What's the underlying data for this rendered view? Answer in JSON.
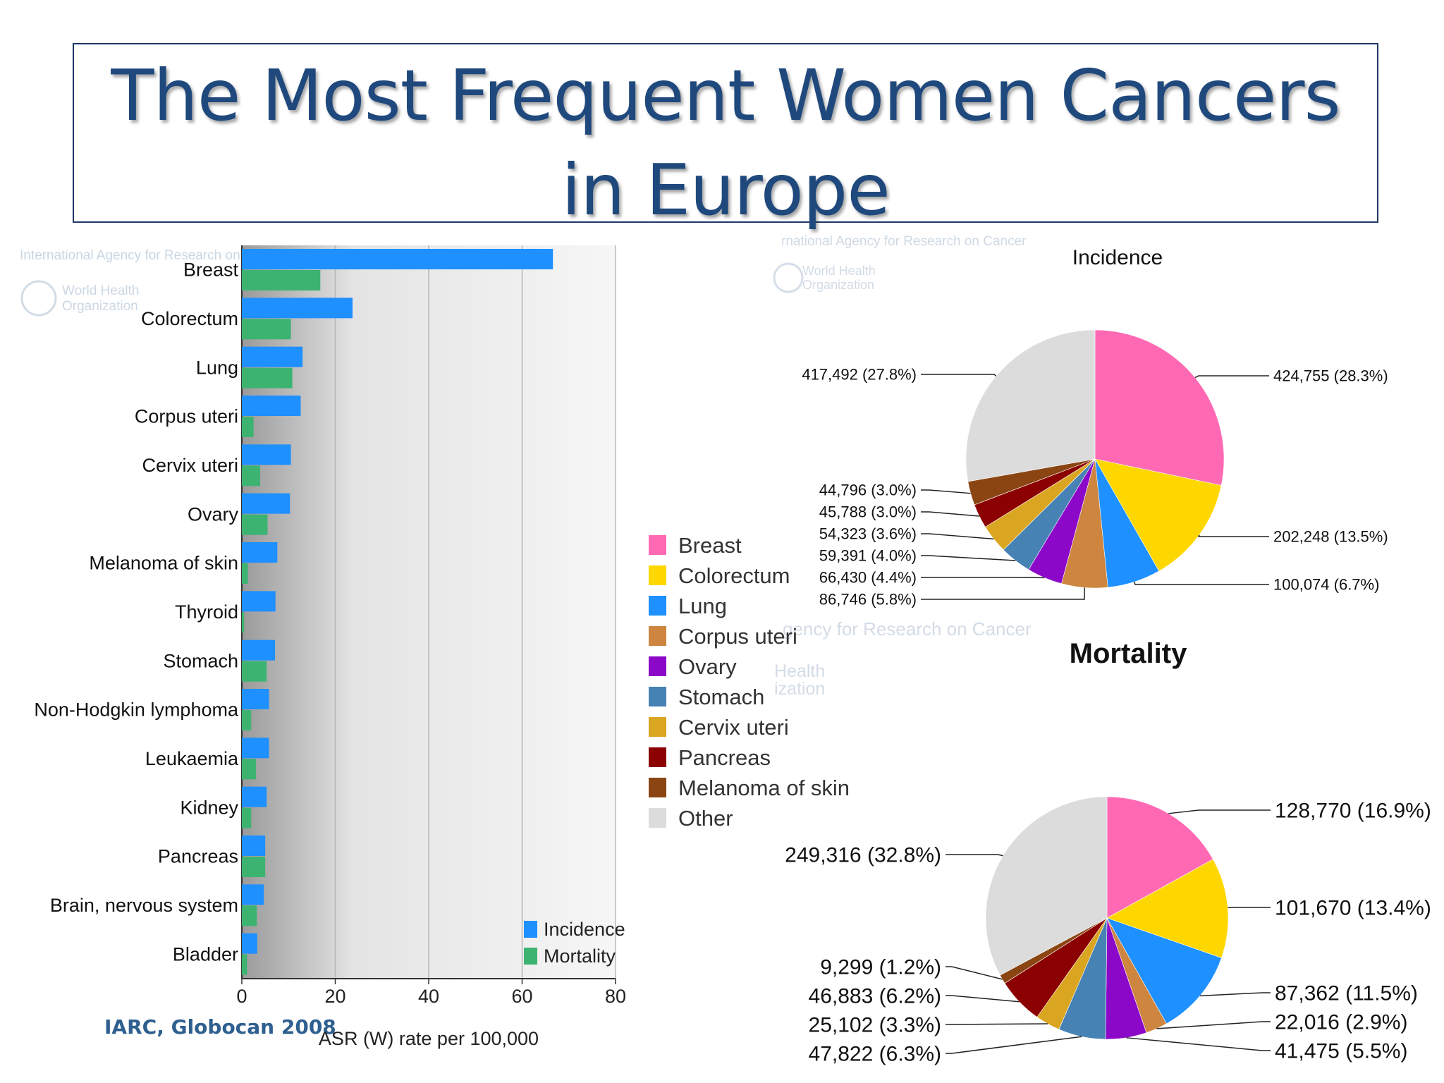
{
  "title": "The Most Frequent Women Cancers in Europe",
  "credit": "IARC, Globocan 2008",
  "watermarks": {
    "agency": "International Agency for Research on Cancer",
    "agency_cut": "International Agency for Research on",
    "agency_partial": "rnational Agency for Research on Cancer",
    "agency_partial_2": "gency for Research on Cancer",
    "who_line1": "World Health",
    "who_line2": "Organization",
    "who_partial1": "Health",
    "who_partial2": "ization"
  },
  "colors": {
    "incidence_bar": "#1e90ff",
    "mortality_bar": "#3cb371",
    "title": "#1f497d",
    "Breast": "#ff69b4",
    "Colorectum": "#ffd700",
    "Lung": "#1e90ff",
    "Corpus uteri": "#cd853f",
    "Ovary": "#8b08c8",
    "Stomach": "#4682b4",
    "Cervix uteri": "#daa520",
    "Pancreas": "#8b0000",
    "Melanoma of skin": "#8b4513",
    "Other": "#dcdcdc"
  },
  "legend": {
    "items": [
      "Breast",
      "Colorectum",
      "Lung",
      "Corpus uteri",
      "Ovary",
      "Stomach",
      "Cervix uteri",
      "Pancreas",
      "Melanoma of skin",
      "Other"
    ]
  },
  "chart_data": [
    {
      "type": "bar",
      "orientation": "horizontal",
      "categories": [
        "Breast",
        "Colorectum",
        "Lung",
        "Corpus uteri",
        "Cervix uteri",
        "Ovary",
        "Melanoma of skin",
        "Thyroid",
        "Stomach",
        "Non-Hodgkin lymphoma",
        "Leukaemia",
        "Kidney",
        "Pancreas",
        "Brain, nervous system",
        "Bladder"
      ],
      "series": [
        {
          "name": "Incidence",
          "values": [
            66.6,
            23.7,
            13.0,
            12.6,
            10.5,
            10.3,
            7.6,
            7.2,
            7.1,
            5.8,
            5.8,
            5.3,
            5.0,
            4.7,
            3.3
          ]
        },
        {
          "name": "Mortality",
          "values": [
            16.8,
            10.5,
            10.8,
            2.5,
            3.9,
            5.5,
            1.3,
            0.5,
            5.3,
            2.0,
            3.0,
            2.0,
            5.0,
            3.2,
            1.1
          ]
        }
      ],
      "xlabel": "ASR (W) rate per 100,000",
      "xlim": [
        0,
        80
      ],
      "xticks": [
        "0",
        "20",
        "40",
        "60",
        "80"
      ],
      "grid": true,
      "legend_position": "bottom-right"
    },
    {
      "type": "pie",
      "title": "Incidence",
      "slices": [
        {
          "name": "Breast",
          "value": 424755,
          "label": "424,755 (28.3%)"
        },
        {
          "name": "Colorectum",
          "value": 202248,
          "label": "202,248 (13.5%)"
        },
        {
          "name": "Lung",
          "value": 100074,
          "label": "100,074 (6.7%)"
        },
        {
          "name": "Corpus uteri",
          "value": 86746,
          "label": "86,746 (5.8%)"
        },
        {
          "name": "Ovary",
          "value": 66430,
          "label": "66,430 (4.4%)"
        },
        {
          "name": "Stomach",
          "value": 59391,
          "label": "59,391 (4.0%)"
        },
        {
          "name": "Cervix uteri",
          "value": 54323,
          "label": "54,323 (3.6%)"
        },
        {
          "name": "Pancreas",
          "value": 45788,
          "label": "45,788 (3.0%)"
        },
        {
          "name": "Melanoma of skin",
          "value": 44796,
          "label": "44,796 (3.0%)"
        },
        {
          "name": "Other",
          "value": 417492,
          "label": "417,492 (27.8%)"
        }
      ]
    },
    {
      "type": "pie",
      "title": "Mortality",
      "slices": [
        {
          "name": "Breast",
          "value": 128770,
          "label": "128,770 (16.9%)"
        },
        {
          "name": "Colorectum",
          "value": 101670,
          "label": "101,670 (13.4%)"
        },
        {
          "name": "Lung",
          "value": 87362,
          "label": "87,362 (11.5%)"
        },
        {
          "name": "Corpus uteri",
          "value": 22016,
          "label": "22,016 (2.9%)"
        },
        {
          "name": "Ovary",
          "value": 41475,
          "label": "41,475 (5.5%)"
        },
        {
          "name": "Stomach",
          "value": 47822,
          "label": "47,822 (6.3%)"
        },
        {
          "name": "Cervix uteri",
          "value": 25102,
          "label": "25,102 (3.3%)"
        },
        {
          "name": "Pancreas",
          "value": 46883,
          "label": "46,883 (6.2%)"
        },
        {
          "name": "Melanoma of skin",
          "value": 9299,
          "label": "9,299 (1.2%)"
        },
        {
          "name": "Other",
          "value": 249316,
          "label": "249,316 (32.8%)"
        }
      ]
    }
  ]
}
